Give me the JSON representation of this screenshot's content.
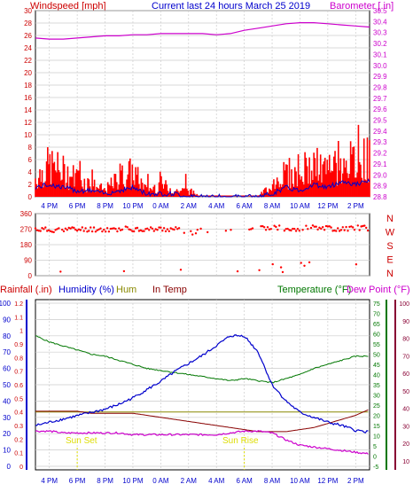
{
  "header": {
    "left": "Windspeed [mph]",
    "center": "Current last 24 hours March 25 2019",
    "right": "Barometer [.in]"
  },
  "middle_header": {
    "rain": "Rainfall (.in)",
    "hum": "Humidity (%)",
    "hum2": "Hum",
    "intemp": "In Temp",
    "temp": "Temperature (°F)",
    "dew": "Dew Point (°F)"
  },
  "time_labels": [
    "4 PM",
    "6 PM",
    "8 PM",
    "10 PM",
    "0 AM",
    "2 AM",
    "4 AM",
    "6 AM",
    "8 AM",
    "10 AM",
    "12 PM",
    "2 PM"
  ],
  "direction_labels": [
    "N",
    "W",
    "S",
    "E",
    "N"
  ],
  "annotations": {
    "sunset": "Sun Set",
    "sunrise": "Sun Rise"
  },
  "colors": {
    "wind": "#ff0000",
    "wind_avg": "#0000cc",
    "baro": "#cc00cc",
    "dir": "#ff0000",
    "humidity": "#0000cc",
    "temp": "#007700",
    "dew": "#cc00cc",
    "intemp": "#880000",
    "rain": "#cc0000",
    "sun": "#dddd00",
    "hum_text": "#888800",
    "grid": "#cccccc",
    "axis_right_left": "#0000cc",
    "axis_temp": "#007700",
    "axis_dew": "#880033"
  },
  "chart_data": [
    {
      "type": "line",
      "title": "Current last 24 hours March 25 2019",
      "ylabel": "Windspeed [mph]",
      "y2label": "Barometer [.in]",
      "ylim": [
        0,
        30
      ],
      "y2lim": [
        28.8,
        30.5
      ],
      "yticks": [
        0,
        2,
        4,
        6,
        8,
        10,
        12,
        14,
        16,
        18,
        20,
        22,
        24,
        26,
        28,
        30
      ],
      "y2ticks": [
        "28.8",
        "28.9",
        "29.0",
        "29.1",
        "29.2",
        "29.3",
        "29.4",
        "29.5",
        "29.6",
        "29.7",
        "29.8",
        "29.9",
        "30.0",
        "30.1",
        "30.2",
        "30.3",
        "30.4",
        "30.5"
      ],
      "x_hours": [
        0,
        1,
        2,
        3,
        4,
        5,
        6,
        7,
        8,
        9,
        10,
        11,
        12,
        13,
        14,
        15,
        16,
        17,
        18,
        19,
        20,
        21,
        22,
        23,
        24
      ],
      "series": [
        {
          "name": "Barometer",
          "values": [
            30.25,
            30.24,
            30.24,
            30.25,
            30.26,
            30.27,
            30.27,
            30.28,
            30.28,
            30.29,
            30.29,
            30.29,
            30.29,
            30.28,
            30.29,
            30.32,
            30.34,
            30.36,
            30.38,
            30.39,
            30.39,
            30.38,
            30.37,
            30.36,
            30.35
          ]
        },
        {
          "name": "Windspeed gust",
          "values": [
            3,
            5,
            4,
            3,
            2,
            1,
            3,
            4,
            1,
            2,
            1,
            1,
            0,
            0,
            0,
            0,
            0,
            2,
            4,
            3,
            5,
            4,
            6,
            5,
            6
          ]
        },
        {
          "name": "Windspeed avg",
          "values": [
            1.5,
            2,
            1.5,
            1,
            1,
            0.5,
            1,
            1.5,
            0.5,
            0.5,
            0.5,
            0,
            0,
            0,
            0,
            0,
            0,
            0.5,
            1.5,
            1,
            2,
            1.5,
            2.5,
            2,
            2.5
          ]
        }
      ]
    },
    {
      "type": "scatter",
      "ylabel": "Wind Direction",
      "ylim": [
        0,
        360
      ],
      "yticks": [
        0,
        90,
        180,
        270,
        360
      ],
      "series": [
        {
          "name": "Direction",
          "x": [
            0,
            1,
            2,
            3,
            4,
            5,
            6,
            7,
            8,
            9,
            10,
            11,
            12,
            13,
            14,
            15,
            16,
            17,
            18,
            19,
            20,
            21,
            22,
            23,
            24
          ],
          "values": [
            270,
            265,
            270,
            268,
            270,
            268,
            270,
            272,
            268,
            270,
            270,
            250,
            260,
            262,
            262,
            262,
            270,
            280,
            275,
            270,
            285,
            275,
            270,
            280,
            275
          ]
        }
      ]
    },
    {
      "type": "line",
      "ylabel_left": "Rainfall (.in)",
      "ylabel_left2": "Humidity (%)",
      "ylabel_right": "Temperature (°F)",
      "ylabel_right2": "Dew Point (°F)",
      "rain_ticks": [
        "0",
        "0.1",
        "0.2",
        "0.3",
        "0.4",
        "0.5",
        "0.6",
        "0.7",
        "0.8",
        "0.9",
        "1",
        "1.1",
        "1.2"
      ],
      "hum_ticks": [
        0,
        10,
        20,
        30,
        40,
        50,
        60,
        70,
        80,
        90,
        100
      ],
      "temp_ticks": [
        -5,
        0,
        5,
        10,
        15,
        20,
        25,
        30,
        35,
        40,
        45,
        50,
        55,
        60,
        65,
        70,
        75
      ],
      "dew_ticks": [
        10,
        20,
        30,
        40,
        50,
        60,
        70,
        80,
        90,
        100
      ],
      "x_hours": [
        0,
        1,
        2,
        3,
        4,
        5,
        6,
        7,
        8,
        9,
        10,
        11,
        12,
        13,
        14,
        15,
        16,
        17,
        18,
        19,
        20,
        21,
        22,
        23,
        24
      ],
      "series": [
        {
          "name": "Humidity",
          "values": [
            25,
            27,
            29,
            31,
            33,
            35,
            38,
            42,
            47,
            52,
            58,
            63,
            68,
            74,
            80,
            80,
            70,
            50,
            40,
            33,
            30,
            27,
            25,
            22,
            21
          ]
        },
        {
          "name": "Temperature",
          "values": [
            59,
            56,
            54,
            52,
            50,
            49,
            47,
            45,
            43,
            42,
            41,
            40,
            39,
            38,
            37,
            38,
            37,
            36,
            38,
            40,
            43,
            45,
            47,
            49,
            49
          ]
        },
        {
          "name": "Dew Point",
          "values": [
            27,
            27,
            26,
            26,
            26,
            26,
            26,
            25,
            25,
            25,
            25,
            25,
            25,
            25,
            26,
            27,
            27,
            26,
            22,
            19,
            18,
            17,
            16,
            15,
            14
          ]
        },
        {
          "name": "In Temp",
          "values": [
            22,
            22,
            22,
            22,
            21,
            21,
            21,
            21,
            20,
            19,
            18,
            17,
            16,
            15,
            14,
            13,
            12,
            12,
            12,
            13,
            14,
            16,
            18,
            20,
            23
          ]
        },
        {
          "name": "Rainfall",
          "values": [
            0.4,
            0.4,
            0.4,
            0.4,
            0.4,
            0.4,
            0.4,
            0.4,
            0.4,
            0.4,
            0.4,
            0.4,
            0.4,
            0.4,
            0.4,
            0.4,
            0.4,
            0.4,
            0.4,
            0.4,
            0.4,
            0.4,
            0.4,
            0.4,
            0.4
          ]
        }
      ]
    }
  ]
}
